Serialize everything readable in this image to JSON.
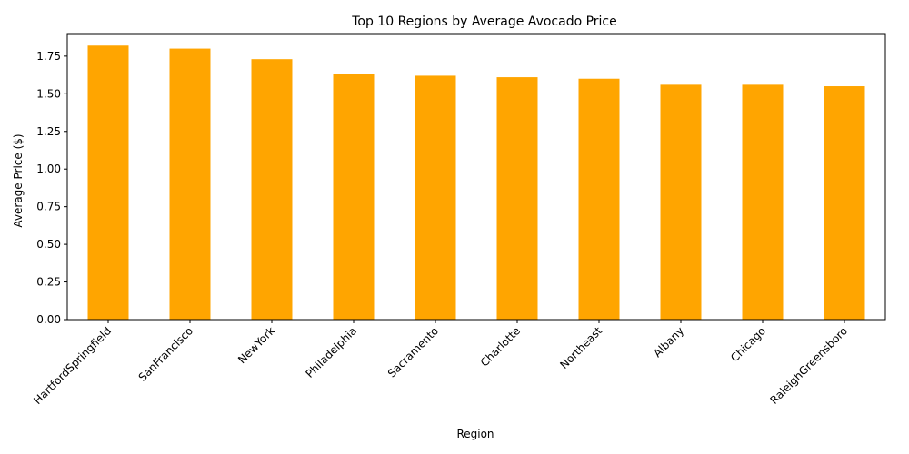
{
  "chart_data": {
    "type": "bar",
    "title": "Top 10 Regions by Average Avocado Price",
    "xlabel": "Region",
    "ylabel": "Average Price ($)",
    "categories": [
      "HartfordSpringfield",
      "SanFrancisco",
      "NewYork",
      "Philadelphia",
      "Sacramento",
      "Charlotte",
      "Northeast",
      "Albany",
      "Chicago",
      "RaleighGreensboro"
    ],
    "values": [
      1.82,
      1.8,
      1.73,
      1.63,
      1.62,
      1.61,
      1.6,
      1.56,
      1.56,
      1.55
    ],
    "ylim": [
      0,
      1.9
    ],
    "yticks": [
      "0.00",
      "0.25",
      "0.50",
      "0.75",
      "1.00",
      "1.25",
      "1.50",
      "1.75"
    ],
    "bar_color": "#ffa500",
    "grid": false,
    "legend": "none"
  }
}
